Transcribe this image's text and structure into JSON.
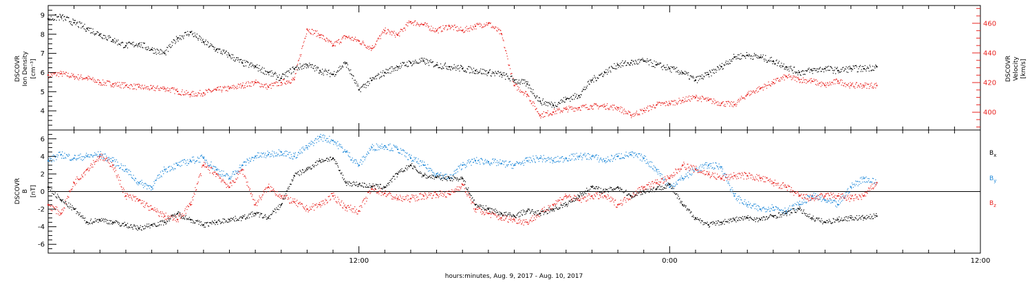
{
  "chart_data": [
    {
      "type": "scatter",
      "xlabel": "hours:minutes, Aug.  9, 2017 - Aug. 10, 2017",
      "x_ticks": [
        "12:00",
        "0:00",
        "12:00"
      ],
      "x_tick_hours": [
        12,
        24,
        36
      ],
      "x_range_hours": [
        0,
        36
      ],
      "grid": false
    },
    {
      "type": "scatter",
      "ylabel_left": [
        "DSCOVR",
        "Ion Density",
        "[cm⁻³]"
      ],
      "ylabel_right": [
        "DSCOVR",
        "Velocity",
        "[km/s]"
      ],
      "y_left_ticks": [
        4,
        5,
        6,
        7,
        8,
        9
      ],
      "y_left_range": [
        3,
        9.5
      ],
      "y_right_ticks": [
        400,
        420,
        440,
        460
      ],
      "y_right_range": [
        388,
        472
      ],
      "series": [
        {
          "name": "Ion Density",
          "axis": "left",
          "color": "#000000",
          "x": [
            0,
            0.5,
            1,
            1.5,
            2,
            2.5,
            3,
            3.5,
            4,
            4.5,
            5,
            5.5,
            6,
            6.5,
            7,
            7.5,
            8,
            8.5,
            9,
            9.5,
            10,
            10.5,
            11,
            11.5,
            12,
            12.5,
            13,
            13.5,
            14,
            14.5,
            15,
            15.5,
            16,
            16.5,
            17,
            17.5,
            18,
            18.5,
            19,
            19.5,
            20,
            20.5,
            21,
            21.5,
            22,
            22.5,
            23,
            23.5,
            24,
            24.5,
            25,
            25.5,
            26,
            26.5,
            27,
            27.5,
            28,
            28.5,
            29,
            29.5,
            30,
            30.5,
            31,
            31.5,
            32
          ],
          "y": [
            8.8,
            8.9,
            8.6,
            8.3,
            8.0,
            7.7,
            7.4,
            7.5,
            7.2,
            7.0,
            7.8,
            8.1,
            7.6,
            7.2,
            6.9,
            6.5,
            6.3,
            6.0,
            5.7,
            6.2,
            6.4,
            6.1,
            5.9,
            6.5,
            5.1,
            5.6,
            6.0,
            6.3,
            6.5,
            6.6,
            6.4,
            6.3,
            6.2,
            6.1,
            6.0,
            5.9,
            5.6,
            5.4,
            4.5,
            4.3,
            4.6,
            4.8,
            5.6,
            6.0,
            6.4,
            6.5,
            6.6,
            6.4,
            6.2,
            6.0,
            5.6,
            5.9,
            6.3,
            6.8,
            6.9,
            6.8,
            6.6,
            6.3,
            6.0,
            6.1,
            6.2,
            6.1,
            6.2,
            6.2,
            6.3
          ]
        },
        {
          "name": "Velocity",
          "axis": "right",
          "color": "#e8221f",
          "x": [
            0,
            0.5,
            1,
            1.5,
            2,
            2.5,
            3,
            3.5,
            4,
            4.5,
            5,
            5.5,
            6,
            6.5,
            7,
            7.5,
            8,
            8.5,
            9,
            9.5,
            10,
            10.5,
            11,
            11.5,
            12,
            12.5,
            13,
            13.5,
            14,
            14.5,
            15,
            15.5,
            16,
            16.5,
            17,
            17.5,
            18,
            18.5,
            19,
            19.5,
            20,
            20.5,
            21,
            21.5,
            22,
            22.5,
            23,
            23.5,
            24,
            24.5,
            25,
            25.5,
            26,
            26.5,
            27,
            27.5,
            28,
            28.5,
            29,
            29.5,
            30,
            30.5,
            31,
            31.5,
            32
          ],
          "y": [
            425,
            426,
            424,
            423,
            420,
            419,
            418,
            417,
            416,
            416,
            414,
            412,
            413,
            415,
            416,
            418,
            420,
            417,
            420,
            422,
            456,
            452,
            445,
            451,
            448,
            443,
            455,
            452,
            461,
            459,
            455,
            458,
            455,
            458,
            460,
            453,
            418,
            412,
            398,
            400,
            402,
            403,
            404,
            404,
            403,
            398,
            401,
            405,
            406,
            408,
            410,
            408,
            406,
            405,
            412,
            416,
            420,
            424,
            422,
            421,
            418,
            421,
            418,
            418,
            418
          ]
        }
      ]
    },
    {
      "type": "scatter",
      "ylabel": [
        "DSCOVR",
        "B",
        "[nT]"
      ],
      "y_ticks": [
        -6,
        -4,
        -2,
        0,
        2,
        4,
        6
      ],
      "y_range": [
        -7,
        7
      ],
      "zero_line": true,
      "series": [
        {
          "name": "Bx",
          "legend_main": "B",
          "legend_sub": "x",
          "color": "#000000",
          "x": [
            0,
            0.5,
            1,
            1.5,
            2,
            2.5,
            3,
            3.5,
            4,
            4.5,
            5,
            5.5,
            6,
            6.5,
            7,
            7.5,
            8,
            8.5,
            9,
            9.5,
            10,
            10.5,
            11,
            11.5,
            12,
            12.5,
            13,
            13.5,
            14,
            14.5,
            15,
            15.5,
            16,
            16.5,
            17,
            17.5,
            18,
            18.5,
            19,
            19.5,
            20,
            20.5,
            21,
            21.5,
            22,
            22.5,
            23,
            23.5,
            24,
            24.5,
            25,
            25.5,
            26,
            26.5,
            27,
            27.5,
            28,
            28.5,
            29,
            29.5,
            30,
            30.5,
            31,
            31.5,
            32
          ],
          "y": [
            0.5,
            -1,
            -2,
            -3.5,
            -3.2,
            -3.5,
            -3.8,
            -4.2,
            -3.8,
            -3.5,
            -2.5,
            -3.2,
            -3.8,
            -3.5,
            -3.2,
            -3,
            -2.5,
            -3.0,
            -1.5,
            1.8,
            2.5,
            3.5,
            3.8,
            1,
            0.8,
            0.6,
            0.5,
            2,
            3.0,
            1.8,
            1.6,
            1.5,
            1.5,
            -1.5,
            -2,
            -2.5,
            -2.8,
            -2.2,
            -2.5,
            -2,
            -1.5,
            -0.5,
            0.5,
            0,
            0.5,
            -0.5,
            0,
            0.3,
            0.8,
            -1.5,
            -3.0,
            -3.8,
            -3.5,
            -3.2,
            -3.0,
            -3.2,
            -2.8,
            -2.5,
            -2.0,
            -3.0,
            -3.5,
            -3.2,
            -3.0,
            -3.0,
            -2.8
          ]
        },
        {
          "name": "By",
          "legend_main": "B",
          "legend_sub": "y",
          "color": "#1a86d8",
          "x": [
            0,
            0.5,
            1,
            1.5,
            2,
            2.5,
            3,
            3.5,
            4,
            4.5,
            5,
            5.5,
            6,
            6.5,
            7,
            7.5,
            8,
            8.5,
            9,
            9.5,
            10,
            10.5,
            11,
            11.5,
            12,
            12.5,
            13,
            13.5,
            14,
            14.5,
            15,
            15.5,
            16,
            16.5,
            17,
            17.5,
            18,
            18.5,
            19,
            19.5,
            20,
            20.5,
            21,
            21.5,
            22,
            22.5,
            23,
            23.5,
            24,
            24.5,
            25,
            25.5,
            26,
            26.5,
            27,
            27.5,
            28,
            28.5,
            29,
            29.5,
            30,
            30.5,
            31,
            31.5,
            32
          ],
          "y": [
            3.5,
            4.2,
            3.8,
            4.0,
            4.2,
            3.5,
            2.5,
            1.0,
            0.5,
            2.5,
            3.0,
            3.5,
            3.8,
            2.5,
            1.5,
            3.0,
            4.0,
            4.2,
            4.5,
            4.0,
            5.0,
            6.2,
            5.8,
            4.5,
            3.0,
            5.0,
            5.2,
            4.8,
            3.8,
            3.0,
            2.0,
            1.5,
            3.0,
            3.5,
            3.4,
            3.2,
            3.0,
            3.5,
            3.8,
            3.5,
            3.8,
            4.0,
            4.0,
            3.5,
            4.0,
            4.2,
            3.8,
            2.5,
            0.5,
            1.5,
            2.5,
            3.0,
            2.8,
            -0.5,
            -1.5,
            -2,
            -1.8,
            -2.2,
            -1.5,
            -0.5,
            -1.0,
            -1.5,
            0.5,
            1.5,
            1.0
          ]
        },
        {
          "name": "Bz",
          "legend_main": "B",
          "legend_sub": "z",
          "color": "#e8221f",
          "x": [
            0,
            0.5,
            1,
            1.5,
            2,
            2.5,
            3,
            3.5,
            4,
            4.5,
            5,
            5.5,
            6,
            6.5,
            7,
            7.5,
            8,
            8.5,
            9,
            9.5,
            10,
            10.5,
            11,
            11.5,
            12,
            12.5,
            13,
            13.5,
            14,
            14.5,
            15,
            15.5,
            16,
            16.5,
            17,
            17.5,
            18,
            18.5,
            19,
            19.5,
            20,
            20.5,
            21,
            21.5,
            22,
            22.5,
            23,
            23.5,
            24,
            24.5,
            25,
            25.5,
            26,
            26.5,
            27,
            27.5,
            28,
            28.5,
            29,
            29.5,
            30,
            30.5,
            31,
            31.5,
            32
          ],
          "y": [
            -1.5,
            -2.5,
            1.0,
            2.5,
            4.0,
            3.0,
            -0.5,
            -1.0,
            -2,
            -2.8,
            -3.2,
            -1.5,
            3.0,
            2.0,
            0.5,
            2.5,
            -1.5,
            0.5,
            -0.5,
            -1.2,
            -2,
            -1.5,
            -0.5,
            -1.8,
            -2.2,
            0.3,
            -0.2,
            -0.8,
            -0.8,
            -0.5,
            -0.3,
            -0.3,
            0.8,
            -2.0,
            -2.5,
            -3.0,
            -3.2,
            -3.5,
            -2.5,
            -1.5,
            -0.5,
            -1,
            -0.5,
            -0.5,
            -1.5,
            -0.5,
            0.5,
            1.0,
            1.5,
            3.0,
            2.5,
            2.0,
            1.5,
            1.8,
            1.8,
            1.5,
            1.0,
            0.5,
            -0.5,
            -0.8,
            -0.5,
            -0.5,
            -0.8,
            -0.5,
            1.0
          ]
        }
      ]
    }
  ]
}
